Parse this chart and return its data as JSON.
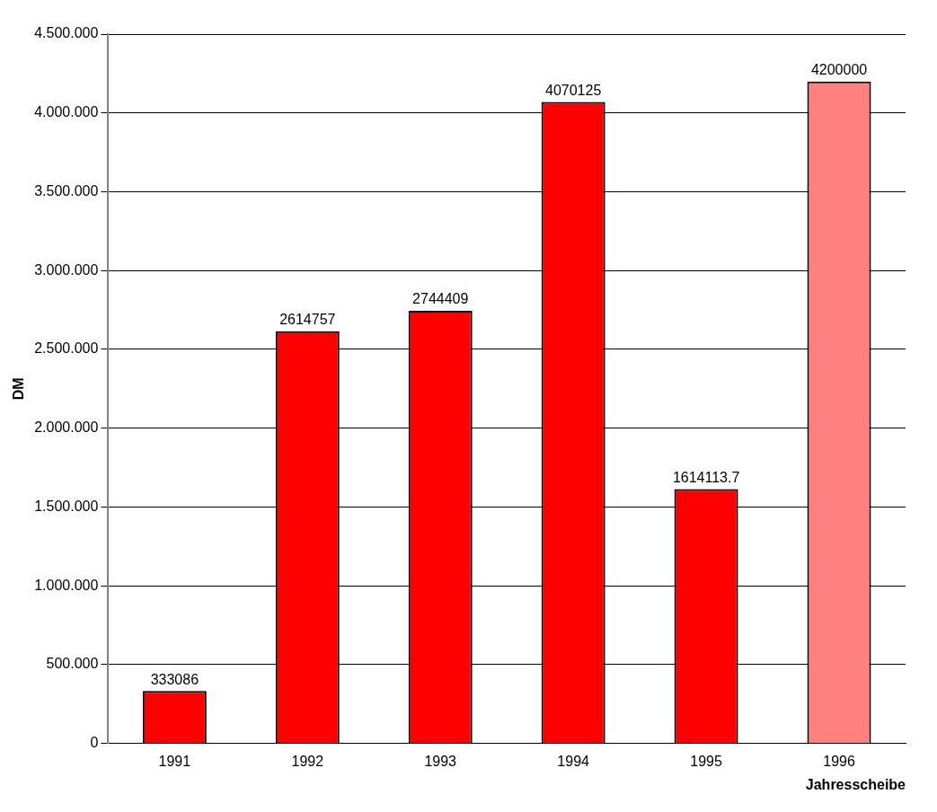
{
  "chart_data": {
    "type": "bar",
    "xlabel": "Jahresscheibe",
    "ylabel": "DM",
    "categories": [
      "1991",
      "1992",
      "1993",
      "1994",
      "1995",
      "1996"
    ],
    "values": [
      333086,
      2614757,
      2744409,
      4070125,
      1614113.7,
      4200000
    ],
    "colors": [
      "#ff0000",
      "#ff0000",
      "#ff0000",
      "#ff0000",
      "#ff0000",
      "#ff8080"
    ],
    "ylim": [
      0,
      4500000
    ],
    "yticks": [
      0,
      {
        "value": 500000,
        "label": "500.000"
      },
      {
        "value": 1000000,
        "label": "1.000.000"
      },
      {
        "value": 1500000,
        "label": "1.500.000"
      },
      {
        "value": 2000000,
        "label": "2.000.000"
      },
      {
        "value": 2500000,
        "label": "2.500.000"
      },
      {
        "value": 3000000,
        "label": "3.000.000"
      },
      {
        "value": 3500000,
        "label": "3.500.000"
      },
      {
        "value": 4000000,
        "label": "4.000.000"
      },
      {
        "value": 4500000,
        "label": "4.500.000"
      }
    ],
    "grid": "y",
    "legend": false,
    "data_labels": true
  }
}
